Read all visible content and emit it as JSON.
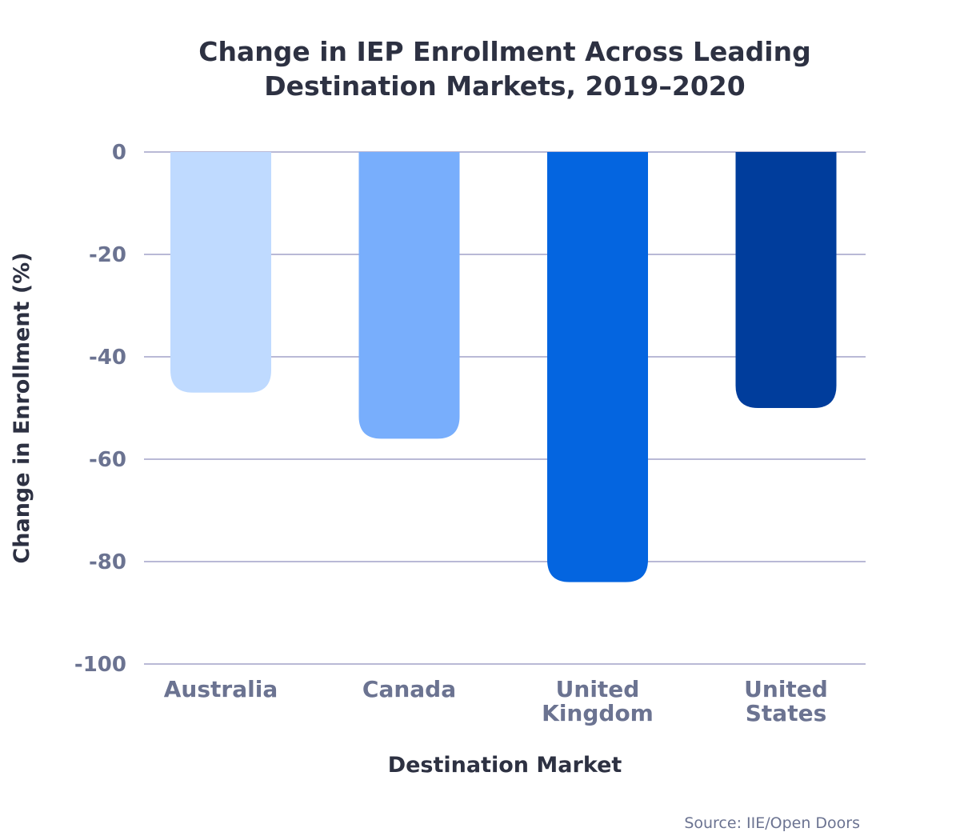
{
  "chart_data": {
    "type": "bar",
    "title_lines": [
      "Change in IEP Enrollment Across Leading",
      "Destination Markets, 2019–2020"
    ],
    "xlabel": "Destination Market",
    "ylabel": "Change in Enrollment (%)",
    "ylim": [
      -100,
      0
    ],
    "yticks": [
      0,
      -20,
      -40,
      -60,
      -80,
      -100
    ],
    "grid": true,
    "categories": [
      [
        "Australia"
      ],
      [
        "Canada"
      ],
      [
        "United",
        "Kingdom"
      ],
      [
        "United",
        "States"
      ]
    ],
    "values": [
      -47,
      -56,
      -84,
      -50
    ],
    "colors": [
      "#bfdaff",
      "#78aefc",
      "#0465e0",
      "#003d9c"
    ],
    "source": "Source: IIE/Open Doors"
  }
}
